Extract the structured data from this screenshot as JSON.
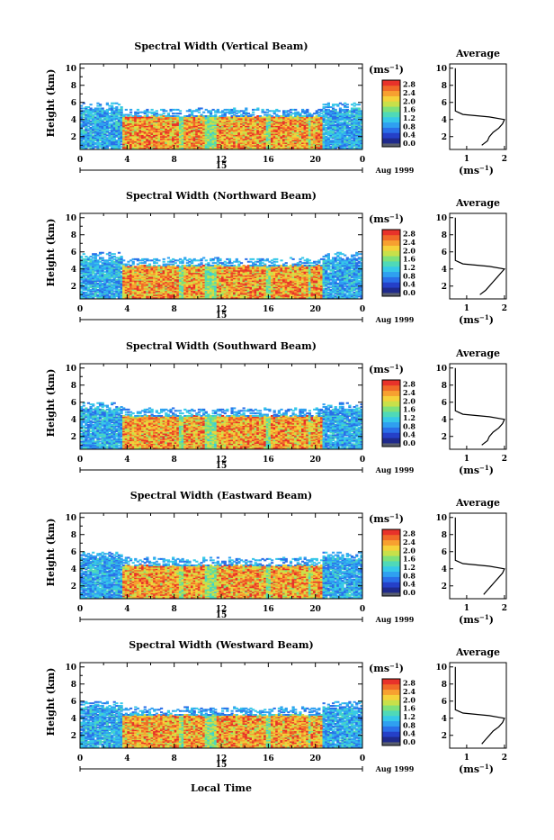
{
  "figure": {
    "xlabel": "Local Time",
    "date_day": "15",
    "date_label": "Aug 1999",
    "ylabel": "Height (km)",
    "cbar_unit": "(ms",
    "cbar_unit_exp": "−1",
    "cbar_unit_close": ")",
    "avg_title": "Average",
    "avg_xlabel": "(ms",
    "avg_xlabel_exp": "−1",
    "avg_xlabel_close": ")"
  },
  "colors": {
    "scale": [
      "#1f2a8c",
      "#2540c8",
      "#2a6fe8",
      "#2fa0f0",
      "#36c8e8",
      "#4fd9b8",
      "#7fe07a",
      "#c8e04a",
      "#f5d13a",
      "#f7a030",
      "#f06a28",
      "#e8322a"
    ],
    "missing": "#ffffff",
    "zero": "#5a5f6e"
  },
  "chart_data": [
    {
      "type": "heatmap",
      "title": "Spectral Width (Vertical Beam)",
      "x_ticks": [
        "0",
        "4",
        "8",
        "12",
        "16",
        "20",
        "0"
      ],
      "y_ticks": [
        "2",
        "4",
        "6",
        "8",
        "10"
      ],
      "xlim_hours": [
        0,
        24
      ],
      "ylim_km": [
        0.5,
        10.5
      ],
      "cbar_ticks": [
        "0.0",
        "0.4",
        "0.8",
        "1.2",
        "1.6",
        "2.0",
        "2.4",
        "2.8"
      ],
      "cbar_range": [
        0,
        3.0
      ],
      "avg_x_ticks": [
        "1",
        "2"
      ],
      "avg_y_ticks": [
        "2",
        "4",
        "6",
        "8",
        "10"
      ],
      "avg_profile": {
        "height_km": [
          1.0,
          1.5,
          2.0,
          2.5,
          3.0,
          3.5,
          4.0,
          4.3,
          4.6,
          5.0,
          6,
          7,
          8,
          9,
          10
        ],
        "width_ms": [
          1.4,
          1.55,
          1.6,
          1.7,
          1.85,
          1.95,
          2.0,
          1.6,
          0.9,
          0.7,
          0.7,
          0.7,
          0.7,
          0.7,
          0.7
        ]
      }
    },
    {
      "type": "heatmap",
      "title": "Spectral Width (Northward Beam)",
      "x_ticks": [
        "0",
        "4",
        "8",
        "12",
        "16",
        "20",
        "0"
      ],
      "y_ticks": [
        "2",
        "4",
        "6",
        "8",
        "10"
      ],
      "xlim_hours": [
        0,
        24
      ],
      "ylim_km": [
        0.5,
        10.5
      ],
      "cbar_ticks": [
        "0.0",
        "0.4",
        "0.8",
        "1.2",
        "1.6",
        "2.0",
        "2.4",
        "2.8"
      ],
      "cbar_range": [
        0,
        3.0
      ],
      "avg_x_ticks": [
        "1",
        "2"
      ],
      "avg_y_ticks": [
        "2",
        "4",
        "6",
        "8",
        "10"
      ],
      "avg_profile": {
        "height_km": [
          1.0,
          1.5,
          2.0,
          2.5,
          3.0,
          3.5,
          4.0,
          4.3,
          4.6,
          5.0,
          6,
          7,
          8,
          9,
          10
        ],
        "width_ms": [
          1.35,
          1.5,
          1.6,
          1.7,
          1.8,
          1.9,
          2.0,
          1.6,
          0.9,
          0.7,
          0.7,
          0.7,
          0.7,
          0.7,
          0.7
        ]
      }
    },
    {
      "type": "heatmap",
      "title": "Spectral Width (Southward Beam)",
      "x_ticks": [
        "0",
        "4",
        "8",
        "12",
        "16",
        "20",
        "0"
      ],
      "y_ticks": [
        "2",
        "4",
        "6",
        "8",
        "10"
      ],
      "xlim_hours": [
        0,
        24
      ],
      "ylim_km": [
        0.5,
        10.5
      ],
      "cbar_ticks": [
        "0.0",
        "0.4",
        "0.8",
        "1.2",
        "1.6",
        "2.0",
        "2.4",
        "2.8"
      ],
      "cbar_range": [
        0,
        3.0
      ],
      "avg_x_ticks": [
        "1",
        "2"
      ],
      "avg_y_ticks": [
        "2",
        "4",
        "6",
        "8",
        "10"
      ],
      "avg_profile": {
        "height_km": [
          1.0,
          1.5,
          2.0,
          2.5,
          3.0,
          3.5,
          4.0,
          4.3,
          4.6,
          5.0,
          6,
          7,
          8,
          9,
          10
        ],
        "width_ms": [
          1.4,
          1.55,
          1.6,
          1.7,
          1.85,
          1.95,
          2.0,
          1.6,
          0.9,
          0.7,
          0.7,
          0.7,
          0.7,
          0.7,
          0.7
        ]
      }
    },
    {
      "type": "heatmap",
      "title": "Spectral Width (Eastward Beam)",
      "x_ticks": [
        "0",
        "4",
        "8",
        "12",
        "16",
        "20",
        "0"
      ],
      "y_ticks": [
        "2",
        "4",
        "6",
        "8",
        "10"
      ],
      "xlim_hours": [
        0,
        24
      ],
      "ylim_km": [
        0.5,
        10.5
      ],
      "cbar_ticks": [
        "0.0",
        "0.4",
        "0.8",
        "1.2",
        "1.6",
        "2.0",
        "2.4",
        "2.8"
      ],
      "cbar_range": [
        0,
        3.0
      ],
      "avg_x_ticks": [
        "1",
        "2"
      ],
      "avg_y_ticks": [
        "2",
        "4",
        "6",
        "8",
        "10"
      ],
      "avg_profile": {
        "height_km": [
          1.0,
          1.5,
          2.0,
          2.5,
          3.0,
          3.5,
          4.0,
          4.3,
          4.6,
          5.0,
          6,
          7,
          8,
          9,
          10
        ],
        "width_ms": [
          1.45,
          1.55,
          1.65,
          1.75,
          1.85,
          1.95,
          2.0,
          1.6,
          0.9,
          0.7,
          0.7,
          0.7,
          0.7,
          0.7,
          0.7
        ]
      }
    },
    {
      "type": "heatmap",
      "title": "Spectral Width (Westward Beam)",
      "x_ticks": [
        "0",
        "4",
        "8",
        "12",
        "16",
        "20",
        "0"
      ],
      "y_ticks": [
        "2",
        "4",
        "6",
        "8",
        "10"
      ],
      "xlim_hours": [
        0,
        24
      ],
      "ylim_km": [
        0.5,
        10.5
      ],
      "cbar_ticks": [
        "0.0",
        "0.4",
        "0.8",
        "1.2",
        "1.6",
        "2.0",
        "2.4",
        "2.8"
      ],
      "cbar_range": [
        0,
        3.0
      ],
      "avg_x_ticks": [
        "1",
        "2"
      ],
      "avg_y_ticks": [
        "2",
        "4",
        "6",
        "8",
        "10"
      ],
      "avg_profile": {
        "height_km": [
          1.0,
          1.5,
          2.0,
          2.5,
          3.0,
          3.5,
          4.0,
          4.3,
          4.6,
          5.0,
          6,
          7,
          8,
          9,
          10
        ],
        "width_ms": [
          1.4,
          1.5,
          1.6,
          1.7,
          1.85,
          1.95,
          2.0,
          1.6,
          0.9,
          0.7,
          0.7,
          0.7,
          0.7,
          0.7,
          0.7
        ]
      }
    }
  ]
}
